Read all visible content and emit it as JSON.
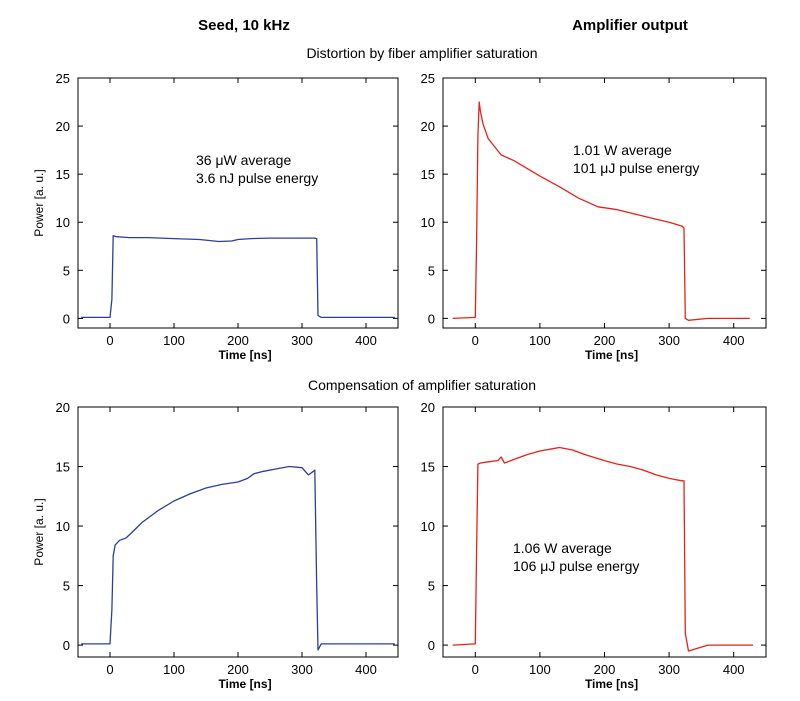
{
  "header": {
    "left_title": "Seed, 10 kHz",
    "right_title": "Amplifier output",
    "row1_title": "Distortion by fiber amplifier saturation",
    "row2_title": "Compensation of amplifier saturation"
  },
  "chart_data": [
    {
      "type": "line",
      "xlabel": "Time [ns]",
      "ylabel": "Power [a. u.]",
      "xlim": [
        -50,
        450
      ],
      "ylim": [
        -1,
        25
      ],
      "xticks": [
        0,
        100,
        200,
        300,
        400
      ],
      "yticks": [
        0,
        5,
        10,
        15,
        20,
        25
      ],
      "grid": false,
      "annotation": [
        "36 μW average",
        "3.6 nJ pulse energy"
      ],
      "series": [
        {
          "color": "#2e3f96",
          "x": [
            -45,
            0,
            3,
            5,
            10,
            30,
            60,
            100,
            140,
            170,
            190,
            200,
            220,
            250,
            280,
            300,
            320,
            323,
            325,
            330,
            360,
            400,
            445
          ],
          "y": [
            0.1,
            0.1,
            2,
            8.6,
            8.5,
            8.4,
            8.4,
            8.3,
            8.2,
            8.0,
            8.05,
            8.2,
            8.3,
            8.35,
            8.35,
            8.35,
            8.35,
            8.3,
            0.3,
            0.1,
            0.1,
            0.1,
            0.1
          ]
        }
      ]
    },
    {
      "type": "line",
      "xlabel": "Time [ns]",
      "ylabel": "",
      "xlim": [
        -50,
        450
      ],
      "ylim": [
        -1,
        25
      ],
      "xticks": [
        0,
        100,
        200,
        300,
        400
      ],
      "yticks": [
        0,
        5,
        10,
        15,
        20,
        25
      ],
      "grid": false,
      "annotation": [
        "1.01 W average",
        "101 μJ pulse energy"
      ],
      "series": [
        {
          "color": "#e0241c",
          "x": [
            -35,
            0,
            2,
            4,
            6,
            8,
            12,
            20,
            40,
            60,
            80,
            100,
            130,
            160,
            190,
            220,
            250,
            280,
            300,
            320,
            323,
            325,
            330,
            360,
            400,
            425
          ],
          "y": [
            0,
            0.1,
            8,
            19,
            22.5,
            21.5,
            20.2,
            18.7,
            17,
            16.4,
            15.6,
            14.8,
            13.7,
            12.5,
            11.6,
            11.3,
            10.8,
            10.3,
            10,
            9.6,
            9.4,
            0,
            -0.2,
            0,
            0,
            0
          ]
        }
      ]
    },
    {
      "type": "line",
      "xlabel": "Time [ns]",
      "ylabel": "Power [a. u.]",
      "xlim": [
        -50,
        450
      ],
      "ylim": [
        -1,
        20
      ],
      "xticks": [
        0,
        100,
        200,
        300,
        400
      ],
      "yticks": [
        0,
        5,
        10,
        15,
        20
      ],
      "grid": false,
      "annotation": [],
      "series": [
        {
          "color": "#2e3f96",
          "x": [
            -45,
            0,
            3,
            5,
            8,
            15,
            25,
            35,
            50,
            75,
            100,
            125,
            150,
            175,
            200,
            215,
            225,
            240,
            260,
            280,
            300,
            310,
            318,
            320,
            323,
            325,
            330,
            360,
            400,
            445
          ],
          "y": [
            0.1,
            0.1,
            3,
            7.5,
            8.4,
            8.8,
            9,
            9.5,
            10.3,
            11.3,
            12.1,
            12.7,
            13.2,
            13.5,
            13.7,
            14.0,
            14.4,
            14.6,
            14.8,
            15.0,
            14.9,
            14.3,
            14.6,
            14.7,
            5,
            -0.4,
            0.1,
            0.1,
            0.1,
            0.1
          ]
        }
      ]
    },
    {
      "type": "line",
      "xlabel": "Time [ns]",
      "ylabel": "",
      "xlim": [
        -50,
        450
      ],
      "ylim": [
        -1,
        20
      ],
      "xticks": [
        0,
        100,
        200,
        300,
        400
      ],
      "yticks": [
        0,
        5,
        10,
        15,
        20
      ],
      "grid": false,
      "annotation": [
        "1.06 W average",
        "106 μJ pulse energy"
      ],
      "series": [
        {
          "color": "#e0241c",
          "x": [
            -35,
            0,
            2,
            4,
            8,
            20,
            35,
            40,
            45,
            60,
            80,
            100,
            120,
            130,
            150,
            170,
            200,
            220,
            240,
            260,
            280,
            300,
            310,
            320,
            323,
            325,
            330,
            360,
            400,
            430
          ],
          "y": [
            0,
            0.1,
            8,
            15.2,
            15.3,
            15.4,
            15.5,
            15.8,
            15.3,
            15.6,
            16.0,
            16.3,
            16.5,
            16.6,
            16.4,
            16.0,
            15.5,
            15.2,
            15.0,
            14.7,
            14.3,
            14.0,
            13.9,
            13.8,
            13.8,
            1,
            -0.5,
            0,
            0,
            0
          ]
        }
      ]
    }
  ]
}
